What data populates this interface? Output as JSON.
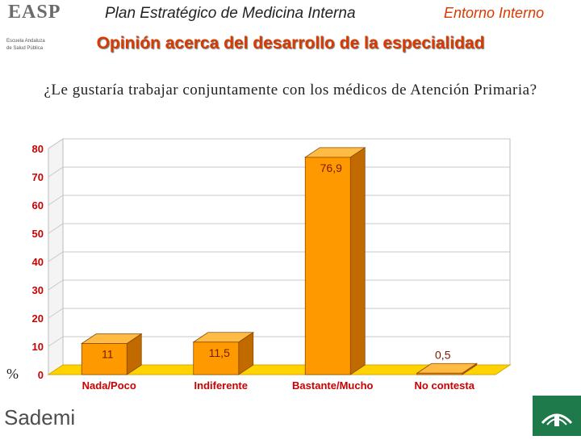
{
  "header": {
    "logo_text": "EASP",
    "logo_subtitle_line1": "Escuela Andaluza",
    "logo_subtitle_line2": "de Salud Pública",
    "title": "Plan Estratégico de Medicina Interna",
    "section": "Entorno Interno"
  },
  "page_title": "Opinión acerca del desarrollo de la especialidad",
  "question": "¿Le gustaría trabajar conjuntamente con los médicos de Atención Primaria?",
  "percent_symbol": "%",
  "footer": {
    "left_logo_text": "Sademi",
    "right_logo_caption": "Junta de Andalucía"
  },
  "colors": {
    "title_orange": "#d83a00",
    "bar_fill": "#ff9900",
    "bar_top": "#ffbb44",
    "bar_side": "#c06a00",
    "floor": "#ffd200",
    "grid": "#c8c8c8",
    "axis_label": "#cc0000",
    "value_label": "#7a1a00"
  },
  "chart_data": {
    "type": "bar",
    "categories": [
      "Nada/Poco",
      "Indiferente",
      "Bastante/Mucho",
      "No contesta"
    ],
    "values": [
      11,
      11.5,
      76.9,
      0.5
    ],
    "value_labels": [
      "11",
      "11,5",
      "76,9",
      "0,5"
    ],
    "ylim": [
      0,
      80
    ],
    "yticks": [
      0,
      10,
      20,
      30,
      40,
      50,
      60,
      70,
      80
    ],
    "ylabel": "%",
    "grid": true,
    "three_d": true
  }
}
